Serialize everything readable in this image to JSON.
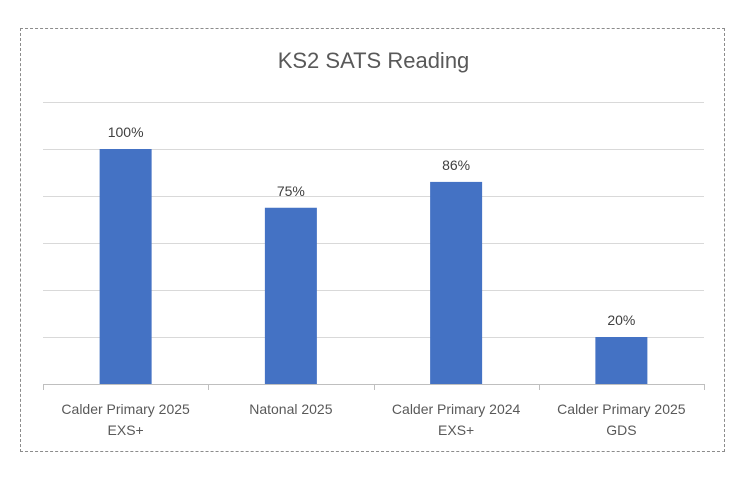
{
  "chart_data": {
    "type": "bar",
    "title": "KS2 SATS Reading",
    "categories": [
      [
        "Calder Primary 2025",
        "EXS+"
      ],
      [
        "Natonal 2025"
      ],
      [
        "Calder Primary 2024",
        "EXS+"
      ],
      [
        "Calder Primary 2025",
        "GDS"
      ]
    ],
    "values": [
      100,
      75,
      86,
      20
    ],
    "data_labels": [
      "100%",
      "75%",
      "86%",
      "20%"
    ],
    "ylim": [
      0,
      120
    ],
    "y_grid_step": 20,
    "grid": true,
    "legend": "none",
    "bar_color": "#4472C4",
    "grid_color": "#d9d9d9",
    "axis_color": "#bfbfbf"
  }
}
